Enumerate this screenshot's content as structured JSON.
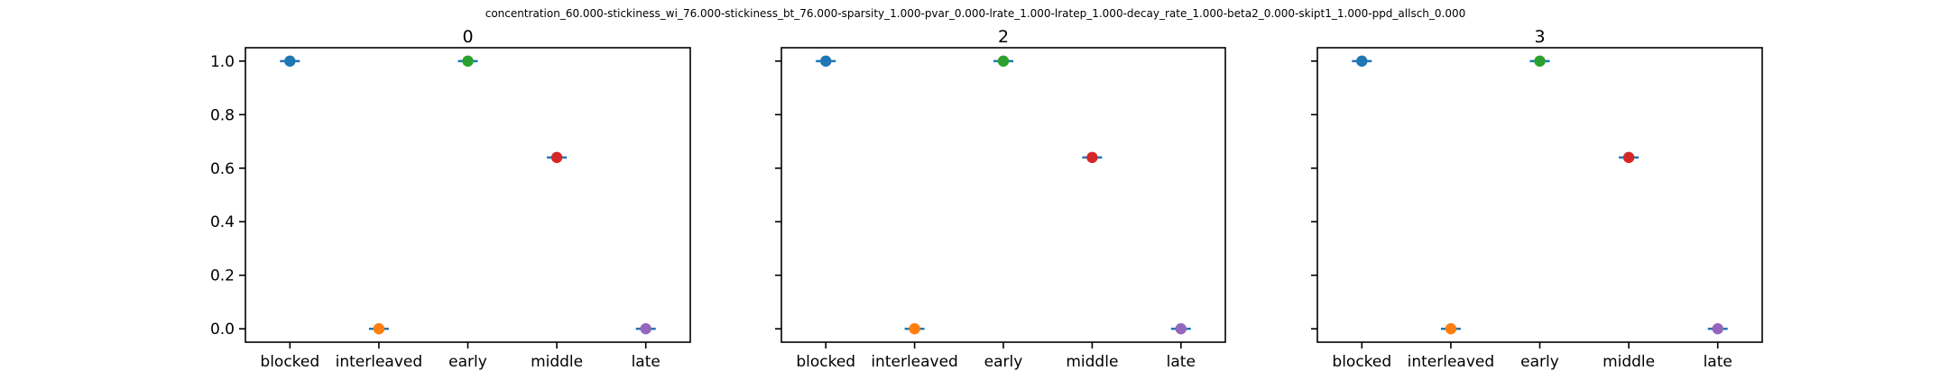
{
  "figure": {
    "suptitle": "concentration_60.000-stickiness_wi_76.000-stickiness_bt_76.000-sparsity_1.000-pvar_0.000-lrate_1.000-lratep_1.000-decay_rate_1.000-beta2_0.000-skipt1_1.000-ppd_allsch_0.000"
  },
  "chart_data": [
    {
      "type": "scatter",
      "title": "0",
      "categories": [
        "blocked",
        "interleaved",
        "early",
        "middle",
        "late"
      ],
      "values": [
        1.0,
        0.0,
        1.0,
        0.64,
        0.0
      ],
      "colors": [
        "#1f77b4",
        "#ff7f0e",
        "#2ca02c",
        "#d62728",
        "#9467bd"
      ],
      "errorbar_color": "#1f77b4",
      "ylim": [
        -0.05,
        1.05
      ],
      "yticks": [
        0.0,
        0.2,
        0.4,
        0.6,
        0.8,
        1.0
      ],
      "ytick_labels": [
        "0.0",
        "0.2",
        "0.4",
        "0.6",
        "0.8",
        "1.0"
      ],
      "xlabel": "",
      "ylabel": "",
      "grid": false
    },
    {
      "type": "scatter",
      "title": "2",
      "categories": [
        "blocked",
        "interleaved",
        "early",
        "middle",
        "late"
      ],
      "values": [
        1.0,
        0.0,
        1.0,
        0.64,
        0.0
      ],
      "colors": [
        "#1f77b4",
        "#ff7f0e",
        "#2ca02c",
        "#d62728",
        "#9467bd"
      ],
      "errorbar_color": "#1f77b4",
      "ylim": [
        -0.05,
        1.05
      ],
      "yticks": [
        0.0,
        0.2,
        0.4,
        0.6,
        0.8,
        1.0
      ],
      "ytick_labels": [],
      "xlabel": "",
      "ylabel": "",
      "grid": false
    },
    {
      "type": "scatter",
      "title": "3",
      "categories": [
        "blocked",
        "interleaved",
        "early",
        "middle",
        "late"
      ],
      "values": [
        1.0,
        0.0,
        1.0,
        0.64,
        0.0
      ],
      "colors": [
        "#1f77b4",
        "#ff7f0e",
        "#2ca02c",
        "#d62728",
        "#9467bd"
      ],
      "errorbar_color": "#1f77b4",
      "ylim": [
        -0.05,
        1.05
      ],
      "yticks": [
        0.0,
        0.2,
        0.4,
        0.6,
        0.8,
        1.0
      ],
      "ytick_labels": [],
      "xlabel": "",
      "ylabel": "",
      "grid": false
    }
  ]
}
